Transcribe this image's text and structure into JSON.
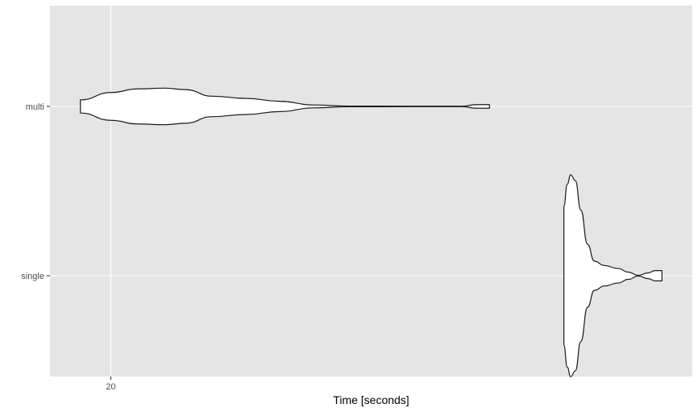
{
  "chart_data": {
    "type": "violin",
    "orientation": "horizontal",
    "xlabel": "Time [seconds]",
    "ylabel": "",
    "x_ticks": [
      20
    ],
    "xlim": [
      19.1,
      28.6
    ],
    "grid": true,
    "panel_background": "#e5e5e5",
    "grid_color": "#ffffff",
    "violin_fill": "#ffffff",
    "violin_outline": "#1a1a1a",
    "categories": [
      "multi",
      "single"
    ],
    "series": [
      {
        "category": "multi",
        "min": 19.55,
        "max": 25.6,
        "profile": [
          [
            19.55,
            0.09
          ],
          [
            20.0,
            0.19
          ],
          [
            20.4,
            0.24
          ],
          [
            20.8,
            0.25
          ],
          [
            21.1,
            0.23
          ],
          [
            21.5,
            0.14
          ],
          [
            22.0,
            0.11
          ],
          [
            22.5,
            0.07
          ],
          [
            23.0,
            0.02
          ],
          [
            23.5,
            0.005
          ],
          [
            24.5,
            0.003
          ],
          [
            25.2,
            0.003
          ],
          [
            25.4,
            0.025
          ],
          [
            25.6,
            0.025
          ]
        ]
      },
      {
        "category": "single",
        "min": 26.7,
        "max": 28.15,
        "profile": [
          [
            26.7,
            0.95
          ],
          [
            26.75,
            1.25
          ],
          [
            26.8,
            1.38
          ],
          [
            26.87,
            1.3
          ],
          [
            26.95,
            0.9
          ],
          [
            27.05,
            0.43
          ],
          [
            27.15,
            0.2
          ],
          [
            27.3,
            0.14
          ],
          [
            27.5,
            0.1
          ],
          [
            27.65,
            0.05
          ],
          [
            27.8,
            0.005
          ],
          [
            27.95,
            0.04
          ],
          [
            28.05,
            0.07
          ],
          [
            28.15,
            0.07
          ]
        ]
      }
    ]
  }
}
